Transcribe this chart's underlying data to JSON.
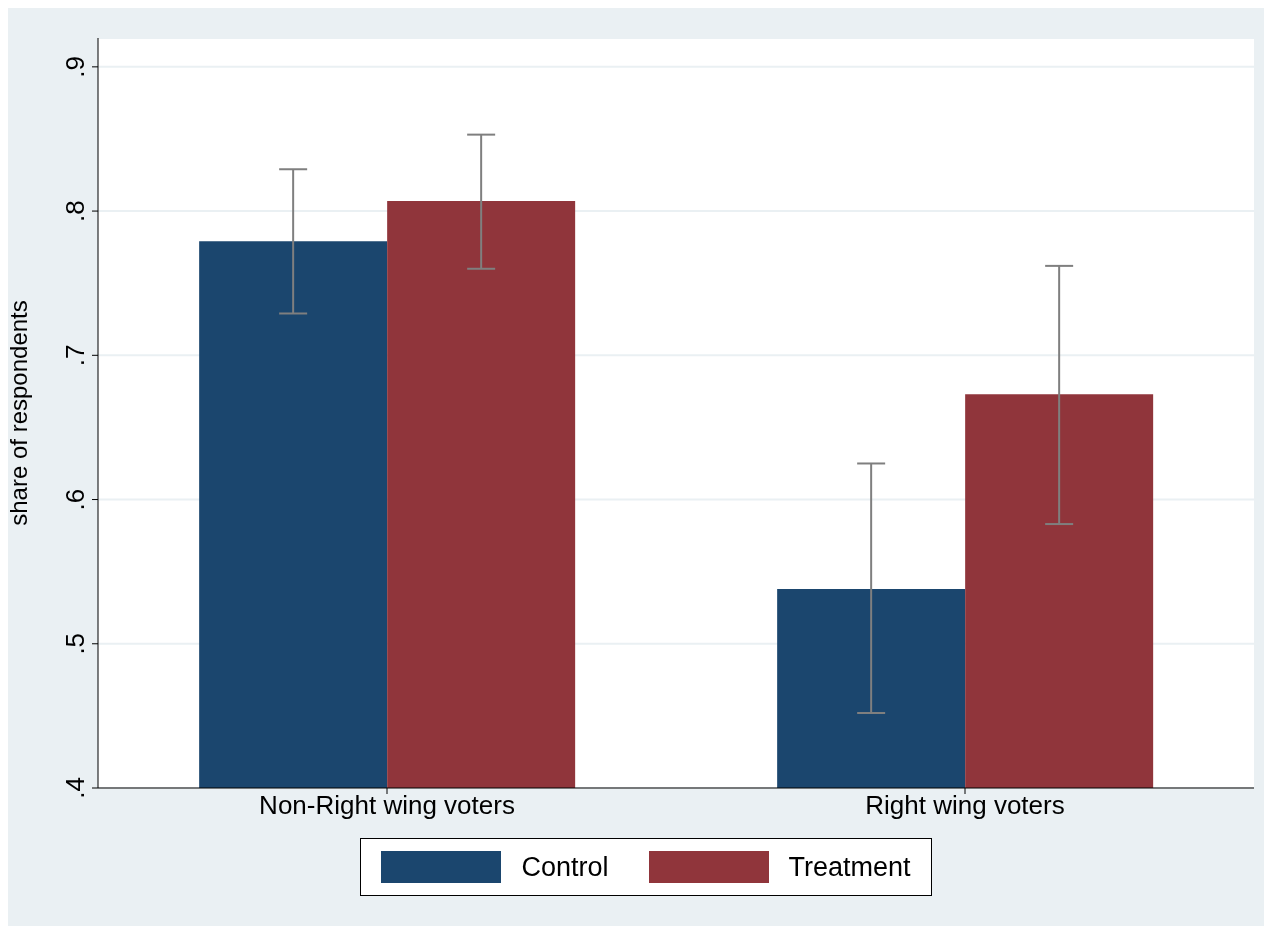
{
  "chart_data": {
    "type": "bar",
    "ylabel": "share of respondents",
    "categories": [
      "Non-Right wing voters",
      "Right wing voters"
    ],
    "series": [
      {
        "name": "Control",
        "color": "#1b466e",
        "values": [
          0.779,
          0.538
        ],
        "errors": [
          [
            0.729,
            0.829
          ],
          [
            0.452,
            0.625
          ]
        ]
      },
      {
        "name": "Treatment",
        "color": "#90353b",
        "values": [
          0.807,
          0.673
        ],
        "errors": [
          [
            0.76,
            0.853
          ],
          [
            0.583,
            0.762
          ]
        ]
      }
    ],
    "ylim": [
      0.4,
      0.92
    ],
    "yticks": [
      {
        "value": 0.4,
        "label": ".4"
      },
      {
        "value": 0.5,
        "label": ".5"
      },
      {
        "value": 0.6,
        "label": ".6"
      },
      {
        "value": 0.7,
        "label": ".7"
      },
      {
        "value": 0.8,
        "label": ".8"
      },
      {
        "value": 0.9,
        "label": ".9"
      }
    ],
    "grid": "y",
    "legend": "bottom"
  }
}
